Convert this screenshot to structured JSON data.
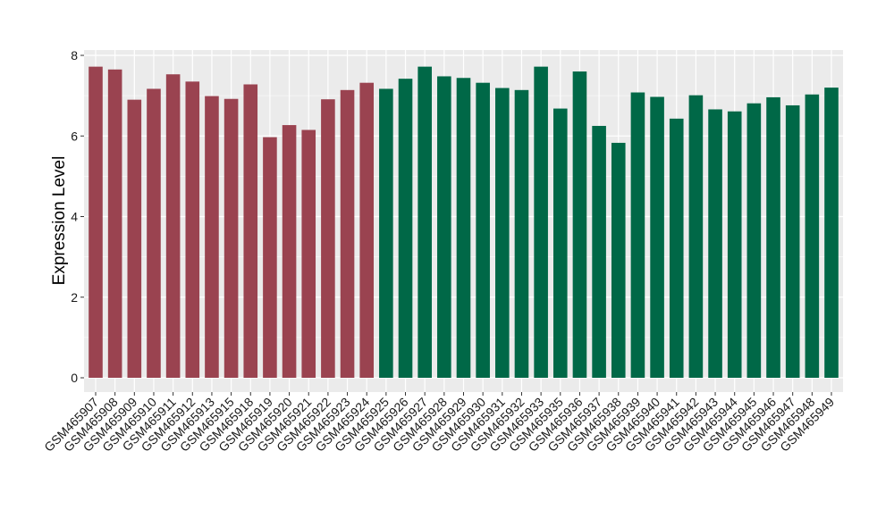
{
  "chart_data": {
    "type": "bar",
    "ylabel": "Expression Level",
    "xlabel": "",
    "ylim": [
      0,
      8
    ],
    "yticks": [
      0,
      2,
      4,
      6,
      8
    ],
    "grid": true,
    "background": "#ebebeb",
    "gridColor": "#ffffff",
    "colors": {
      "group1": "#9a4350",
      "group2": "#006847"
    },
    "categories": [
      "GSM465907",
      "GSM465908",
      "GSM465909",
      "GSM465910",
      "GSM465911",
      "GSM465912",
      "GSM465913",
      "GSM465915",
      "GSM465918",
      "GSM465919",
      "GSM465920",
      "GSM465921",
      "GSM465922",
      "GSM465923",
      "GSM465924",
      "GSM465925",
      "GSM465926",
      "GSM465927",
      "GSM465928",
      "GSM465929",
      "GSM465930",
      "GSM465931",
      "GSM465932",
      "GSM465933",
      "GSM465935",
      "GSM465936",
      "GSM465937",
      "GSM465938",
      "GSM465939",
      "GSM465940",
      "GSM465941",
      "GSM465942",
      "GSM465943",
      "GSM465944",
      "GSM465945",
      "GSM465946",
      "GSM465947",
      "GSM465948",
      "GSM465949"
    ],
    "values": [
      7.72,
      7.65,
      6.9,
      7.17,
      7.53,
      7.35,
      6.99,
      6.92,
      7.28,
      5.97,
      6.27,
      6.15,
      6.91,
      7.14,
      7.32,
      7.17,
      7.42,
      7.72,
      7.48,
      7.44,
      7.32,
      7.19,
      7.14,
      7.72,
      6.68,
      7.6,
      6.25,
      5.83,
      7.08,
      6.97,
      6.43,
      7.01,
      6.66,
      6.61,
      6.81,
      6.96,
      6.76,
      7.03,
      7.2
    ],
    "groups": [
      1,
      1,
      1,
      1,
      1,
      1,
      1,
      1,
      1,
      1,
      1,
      1,
      1,
      1,
      1,
      2,
      2,
      2,
      2,
      2,
      2,
      2,
      2,
      2,
      2,
      2,
      2,
      2,
      2,
      2,
      2,
      2,
      2,
      2,
      2,
      2,
      2,
      2,
      2
    ]
  }
}
